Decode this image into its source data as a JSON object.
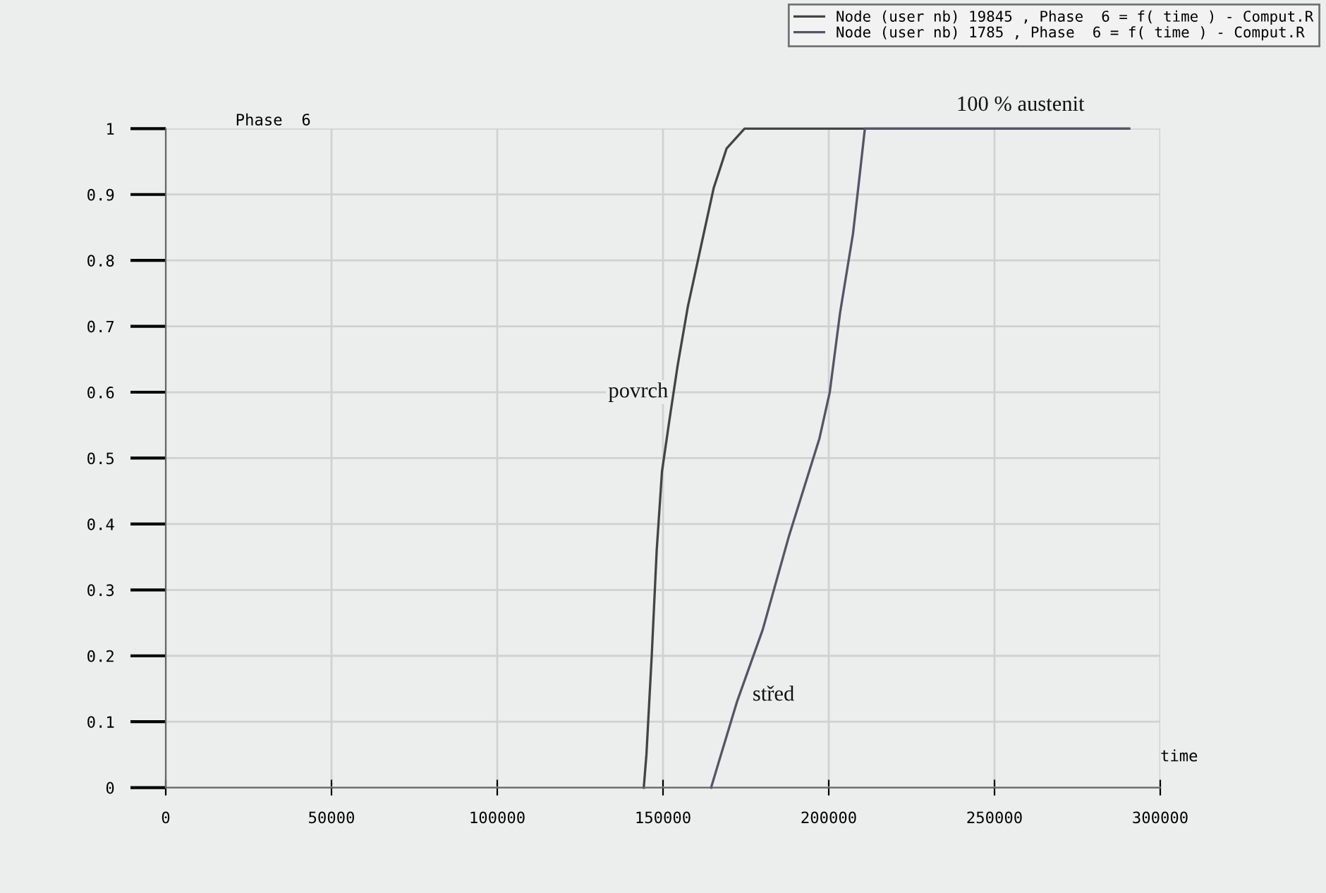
{
  "chart_data": {
    "type": "line",
    "ylabel": "Phase  6",
    "xlabel": "time",
    "xlim": [
      0,
      300000
    ],
    "ylim": [
      0,
      1
    ],
    "xticks": [
      0,
      50000,
      100000,
      150000,
      200000,
      250000,
      300000
    ],
    "yticks": [
      0,
      0.1,
      0.2,
      0.3,
      0.4,
      0.5,
      0.6,
      0.7,
      0.8,
      0.9,
      1
    ],
    "grid": true,
    "legend": "top right",
    "line_style": "solid",
    "marker": "none",
    "series": [
      {
        "name": "Node (user nb) 19845 , Phase  6 = f( time ) - Comput.R",
        "color": "#444444",
        "x": [
          144200,
          145000,
          146600,
          148100,
          149700,
          152000,
          154400,
          157500,
          161400,
          165300,
          169200,
          174600,
          178500,
          290600
        ],
        "values": [
          0,
          0.05,
          0.2,
          0.36,
          0.48,
          0.56,
          0.64,
          0.73,
          0.82,
          0.91,
          0.97,
          1.0,
          1,
          1
        ]
      },
      {
        "name": "Node (user nb) 1785 , Phase  6 = f( time ) - Comput.R",
        "color": "#555566",
        "x": [
          164500,
          172300,
          180100,
          187900,
          197200,
          200300,
          203400,
          207300,
          208900,
          210900,
          290600
        ],
        "values": [
          0,
          0.13,
          0.24,
          0.38,
          0.53,
          0.6,
          0.72,
          0.84,
          0.91,
          1,
          1
        ]
      }
    ],
    "annotations": [
      "povrch",
      "střed",
      "100 % austenit"
    ]
  }
}
